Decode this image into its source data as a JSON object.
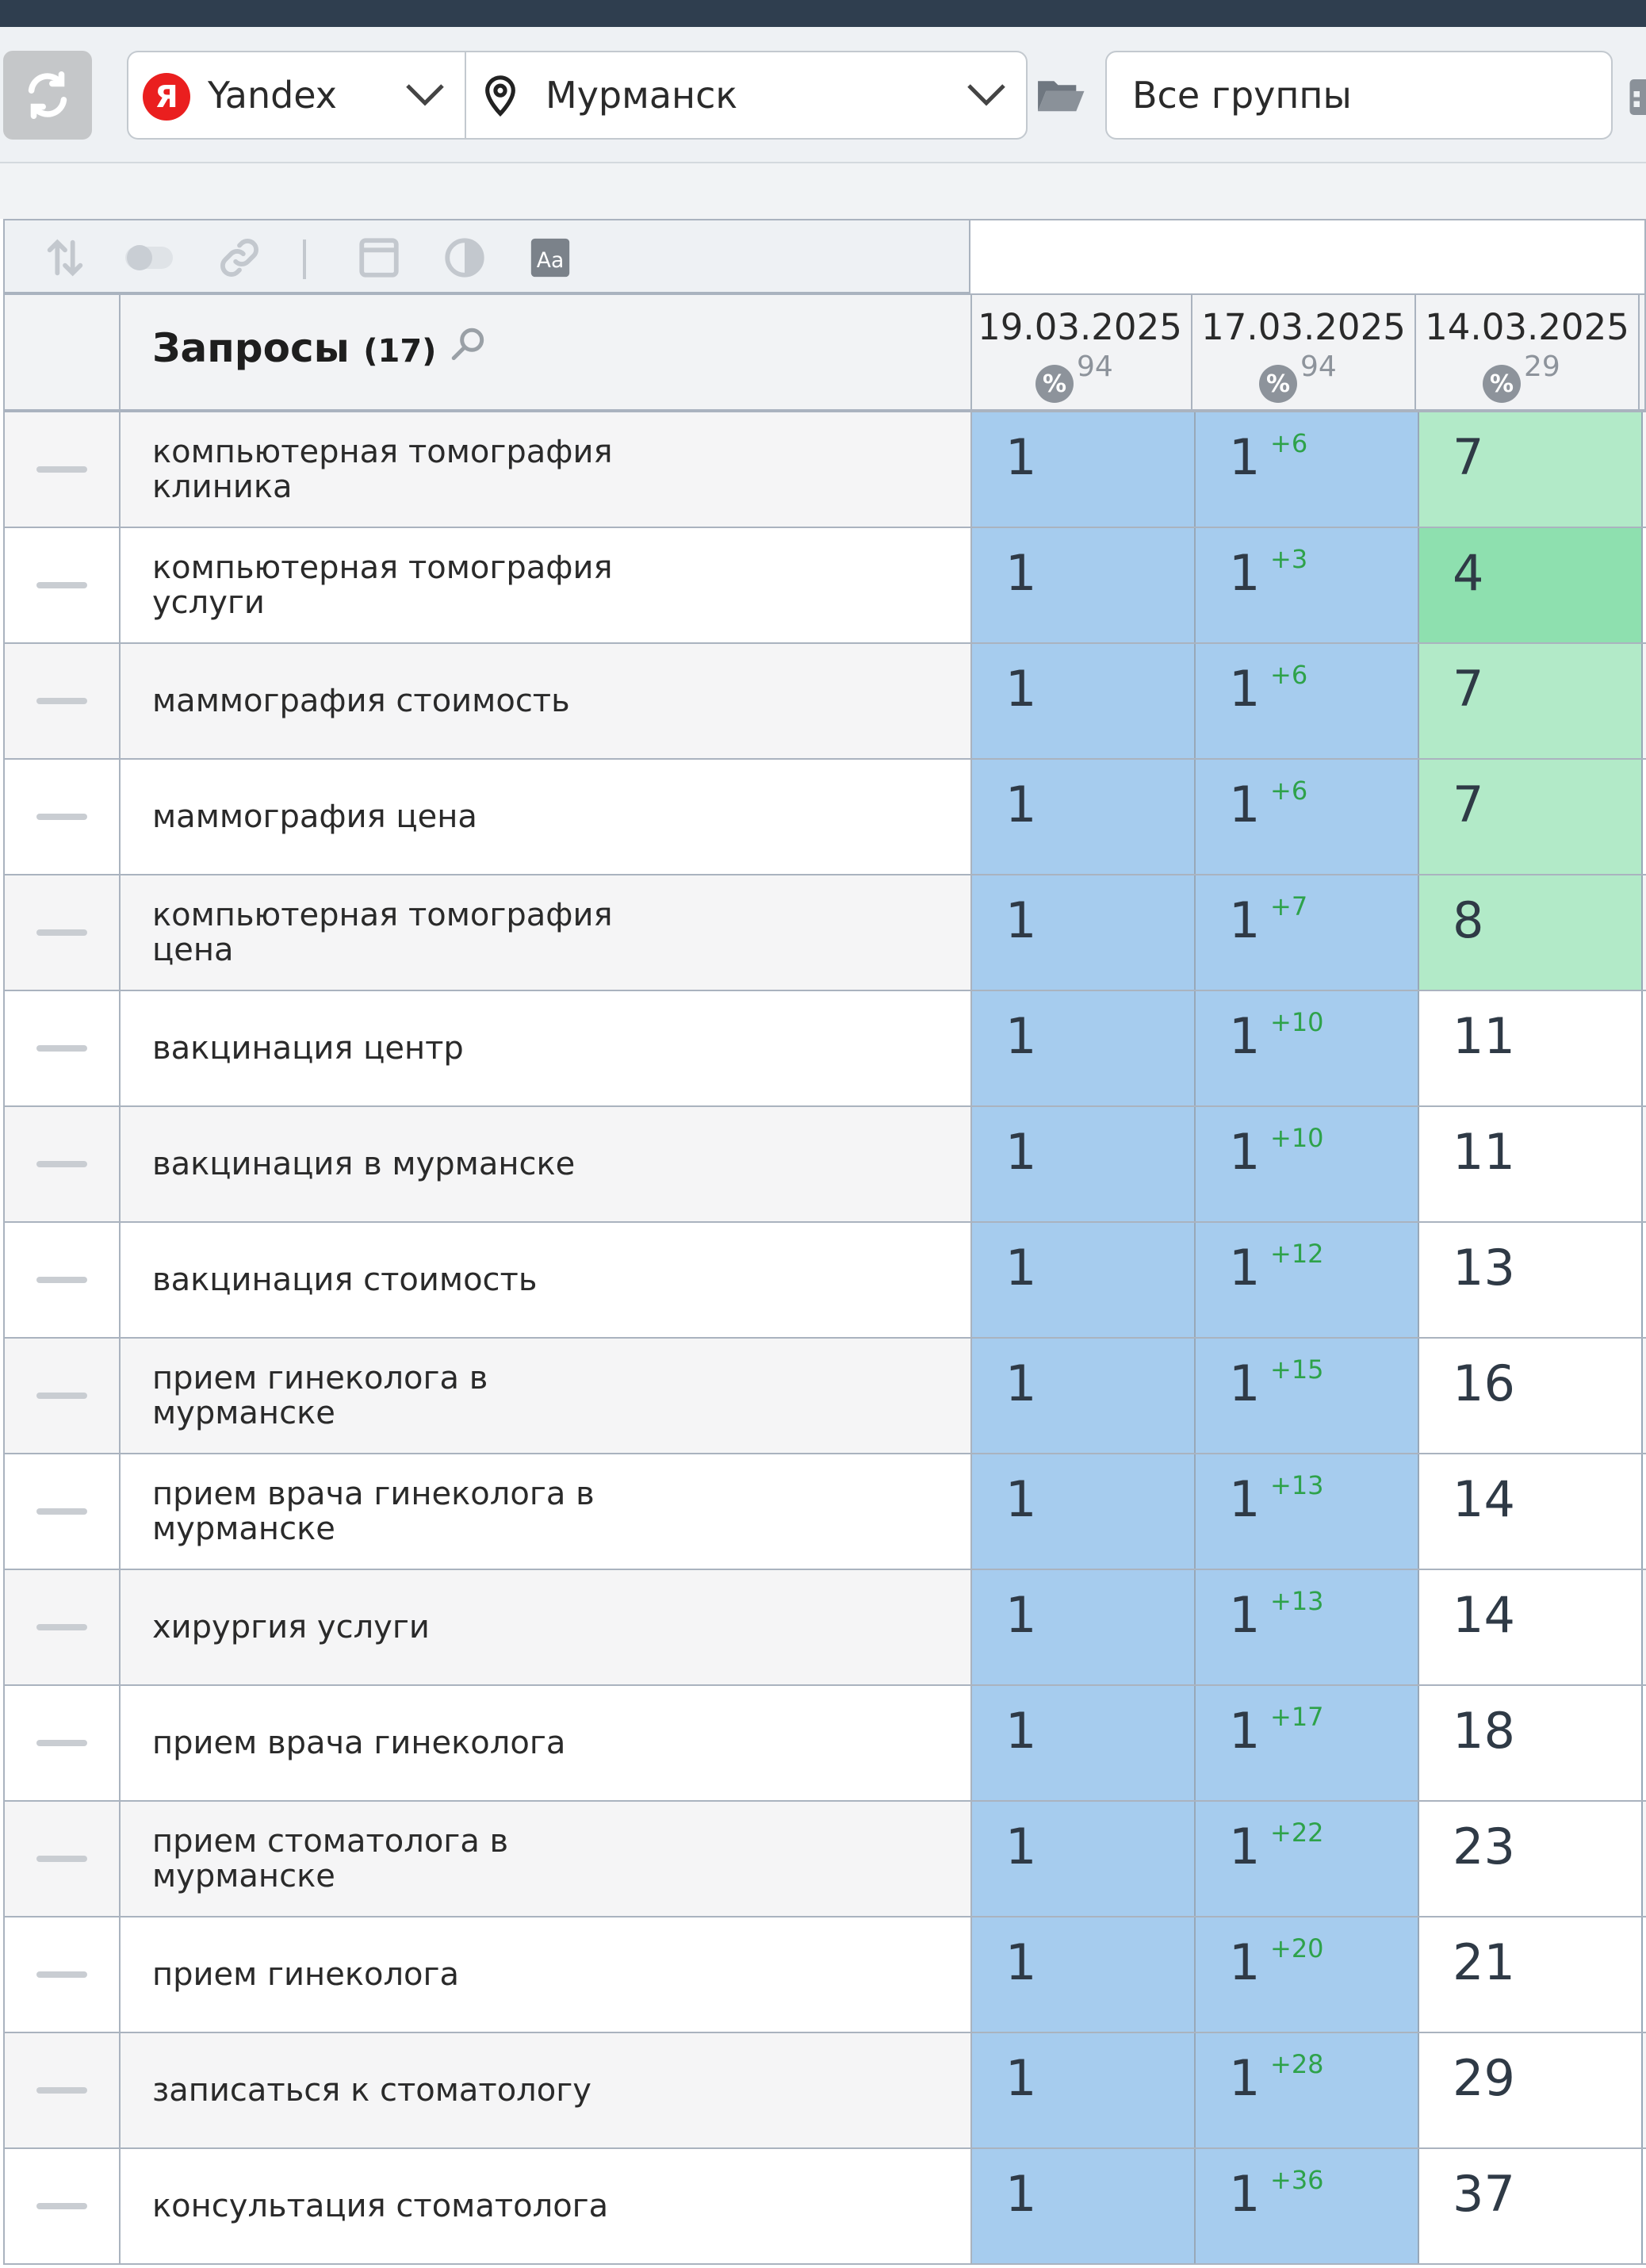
{
  "toolbar": {
    "engine": "Yandex",
    "engine_badge": "Я",
    "city": "Мурманск",
    "group": "Все группы"
  },
  "table": {
    "header": {
      "title": "Запросы",
      "count": "(17)",
      "dates": [
        {
          "date": "19.03.2025",
          "pct": "94",
          "pct_icon": "%"
        },
        {
          "date": "17.03.2025",
          "pct": "94",
          "pct_icon": "%"
        },
        {
          "date": "14.03.2025",
          "pct": "29",
          "pct_icon": "%"
        }
      ]
    },
    "rows": [
      {
        "query": "компьютерная томография клиника",
        "p1": "1",
        "p2": "1",
        "d2": "+6",
        "p3": "7",
        "p3_color": "#b2eac8"
      },
      {
        "query": "компьютерная томография услуги",
        "p1": "1",
        "p2": "1",
        "d2": "+3",
        "p3": "4",
        "p3_color": "#8ee0af"
      },
      {
        "query": "маммография стоимость",
        "p1": "1",
        "p2": "1",
        "d2": "+6",
        "p3": "7",
        "p3_color": "#b2eac8"
      },
      {
        "query": "маммография цена",
        "p1": "1",
        "p2": "1",
        "d2": "+6",
        "p3": "7",
        "p3_color": "#b2eac8"
      },
      {
        "query": "компьютерная томография цена",
        "p1": "1",
        "p2": "1",
        "d2": "+7",
        "p3": "8",
        "p3_color": "#b2eac8"
      },
      {
        "query": "вакцинация центр",
        "p1": "1",
        "p2": "1",
        "d2": "+10",
        "p3": "11",
        "p3_color": "#ffffff"
      },
      {
        "query": "вакцинация в мурманске",
        "p1": "1",
        "p2": "1",
        "d2": "+10",
        "p3": "11",
        "p3_color": "#ffffff"
      },
      {
        "query": "вакцинация стоимость",
        "p1": "1",
        "p2": "1",
        "d2": "+12",
        "p3": "13",
        "p3_color": "#ffffff"
      },
      {
        "query": "прием гинеколога в мурманске",
        "p1": "1",
        "p2": "1",
        "d2": "+15",
        "p3": "16",
        "p3_color": "#ffffff"
      },
      {
        "query": "прием врача гинеколога в мурманске",
        "p1": "1",
        "p2": "1",
        "d2": "+13",
        "p3": "14",
        "p3_color": "#ffffff"
      },
      {
        "query": "хирургия услуги",
        "p1": "1",
        "p2": "1",
        "d2": "+13",
        "p3": "14",
        "p3_color": "#ffffff"
      },
      {
        "query": "прием врача гинеколога",
        "p1": "1",
        "p2": "1",
        "d2": "+17",
        "p3": "18",
        "p3_color": "#ffffff"
      },
      {
        "query": "прием стоматолога в мурманске",
        "p1": "1",
        "p2": "1",
        "d2": "+22",
        "p3": "23",
        "p3_color": "#ffffff"
      },
      {
        "query": "прием гинеколога",
        "p1": "1",
        "p2": "1",
        "d2": "+20",
        "p3": "21",
        "p3_color": "#ffffff"
      },
      {
        "query": "записаться к стоматологу",
        "p1": "1",
        "p2": "1",
        "d2": "+28",
        "p3": "29",
        "p3_color": "#ffffff"
      },
      {
        "query": "консультация стоматолога",
        "p1": "1",
        "p2": "1",
        "d2": "+36",
        "p3": "37",
        "p3_color": "#ffffff"
      }
    ]
  }
}
